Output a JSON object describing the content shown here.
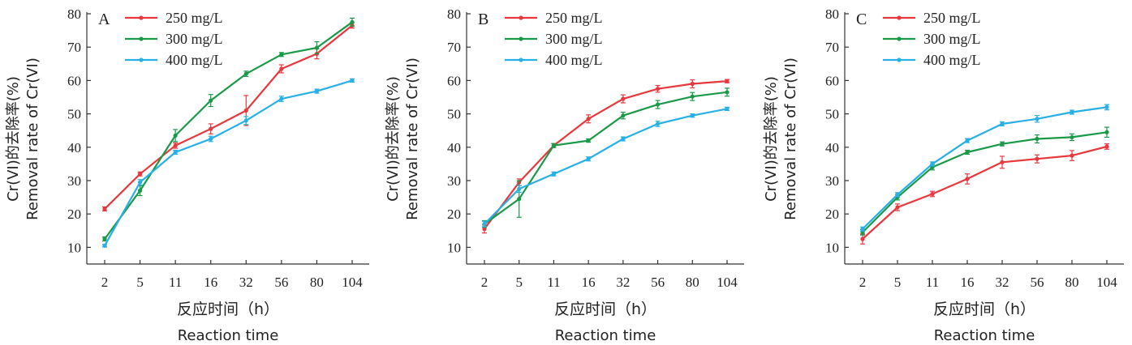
{
  "colors": {
    "250": "#e8383d",
    "300": "#1a9a48",
    "400": "#27b0e6",
    "axis": "#333333"
  },
  "chart_data": [
    {
      "type": "line",
      "panel": "A",
      "categories": [
        "2",
        "5",
        "11",
        "16",
        "32",
        "56",
        "80",
        "104"
      ],
      "xlabel_cn": "反应时间（h）",
      "xlabel_en": "Reaction time",
      "ylabel_cn": "Cr(VI)的去除率(%)",
      "ylabel_en": "Removal rate of Cr(VI)",
      "ylim": [
        5,
        80
      ],
      "yticks": [
        10,
        20,
        30,
        40,
        50,
        60,
        70,
        80
      ],
      "legend_position": "top-left",
      "series": [
        {
          "name": "250 mg/L",
          "values": [
            21.5,
            32.0,
            40.5,
            45.5,
            51.0,
            63.5,
            68.0,
            76.5
          ],
          "errors": [
            0.6,
            0.6,
            0.8,
            1.5,
            4.5,
            1.2,
            1.5,
            0.8
          ]
        },
        {
          "name": "300 mg/L",
          "values": [
            12.5,
            27.0,
            43.5,
            54.0,
            62.0,
            67.8,
            69.8,
            77.5
          ],
          "errors": [
            0.6,
            1.5,
            1.8,
            1.8,
            0.8,
            0.6,
            1.8,
            1.2
          ]
        },
        {
          "name": "400 mg/L",
          "values": [
            10.5,
            29.5,
            38.5,
            42.5,
            48.0,
            54.5,
            56.8,
            60.0
          ],
          "errors": [
            0.4,
            0.8,
            0.6,
            0.8,
            1.2,
            0.8,
            0.6,
            0.5
          ]
        }
      ]
    },
    {
      "type": "line",
      "panel": "B",
      "categories": [
        "2",
        "5",
        "11",
        "16",
        "32",
        "56",
        "80",
        "104"
      ],
      "xlabel_cn": "反应时间（h）",
      "xlabel_en": "Reaction time",
      "ylabel_cn": "Cr(VI)的去除率(%)",
      "ylabel_en": "Removal rate of Cr(VI)",
      "ylim": [
        5,
        80
      ],
      "yticks": [
        10,
        20,
        30,
        40,
        50,
        60,
        70,
        80
      ],
      "legend_position": "top-left",
      "series": [
        {
          "name": "250 mg/L",
          "values": [
            15.5,
            29.5,
            40.5,
            48.5,
            54.5,
            57.5,
            59.0,
            59.8
          ],
          "errors": [
            1.2,
            1.0,
            0.6,
            1.2,
            1.2,
            1.0,
            1.2,
            0.5
          ]
        },
        {
          "name": "300 mg/L",
          "values": [
            17.0,
            24.5,
            40.5,
            42.0,
            49.5,
            52.8,
            55.2,
            56.5
          ],
          "errors": [
            1.0,
            5.5,
            0.6,
            0.5,
            1.0,
            1.2,
            1.2,
            1.2
          ]
        },
        {
          "name": "400 mg/L",
          "values": [
            17.0,
            27.5,
            32.0,
            36.5,
            42.5,
            47.0,
            49.5,
            51.5
          ],
          "errors": [
            0.8,
            1.0,
            0.6,
            0.6,
            0.6,
            0.8,
            0.5,
            0.5
          ]
        }
      ]
    },
    {
      "type": "line",
      "panel": "C",
      "categories": [
        "2",
        "5",
        "11",
        "16",
        "32",
        "56",
        "80",
        "104"
      ],
      "xlabel_cn": "反应时间（h）",
      "xlabel_en": "Reaction time",
      "ylabel_cn": "Cr(VI)的去除率(%)",
      "ylabel_en": "Removal rate of Cr(VI)",
      "ylim": [
        5,
        80
      ],
      "yticks": [
        10,
        20,
        30,
        40,
        50,
        60,
        70,
        80
      ],
      "legend_position": "top-left",
      "series": [
        {
          "name": "250 mg/L",
          "values": [
            12.5,
            22.0,
            26.0,
            30.5,
            35.5,
            36.5,
            37.5,
            40.2
          ],
          "errors": [
            1.5,
            1.0,
            0.8,
            1.5,
            1.8,
            1.2,
            1.5,
            0.8
          ]
        },
        {
          "name": "300 mg/L",
          "values": [
            14.5,
            25.0,
            34.0,
            38.5,
            41.0,
            42.5,
            43.0,
            44.5
          ],
          "errors": [
            0.8,
            0.8,
            0.8,
            0.6,
            0.6,
            1.2,
            1.0,
            1.5
          ]
        },
        {
          "name": "400 mg/L",
          "values": [
            15.5,
            25.8,
            35.0,
            42.0,
            47.0,
            48.5,
            50.5,
            52.0
          ],
          "errors": [
            0.6,
            0.6,
            0.6,
            0.6,
            0.6,
            1.0,
            0.6,
            0.8
          ]
        }
      ]
    }
  ]
}
